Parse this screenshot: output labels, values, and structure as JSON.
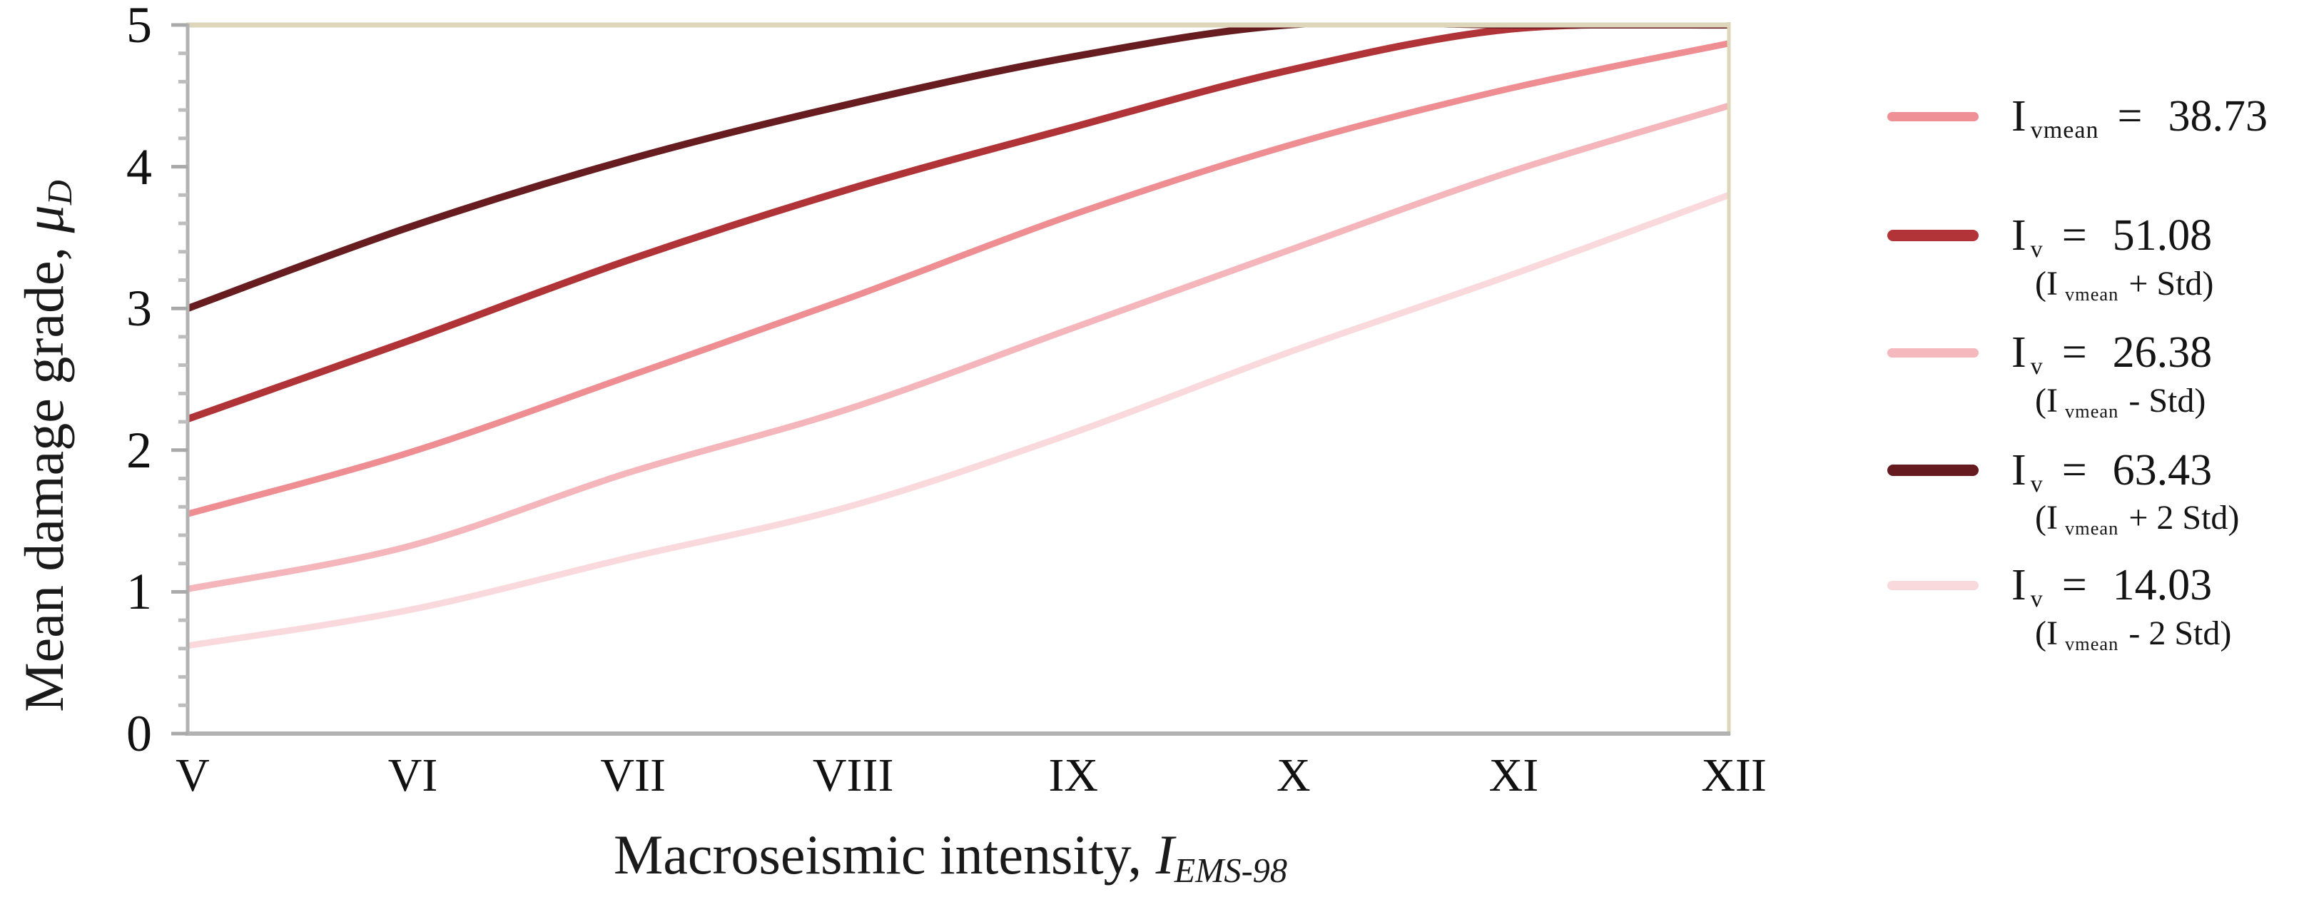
{
  "chart_data": {
    "type": "line",
    "title": "",
    "xlabel": "Macroseismic intensity, I_EMS-98",
    "ylabel": "Mean damage grade, μ_D",
    "categories": [
      "V",
      "VI",
      "VII",
      "VIII",
      "IX",
      "X",
      "XI",
      "XII"
    ],
    "x_values": [
      5,
      6,
      7,
      8,
      9,
      10,
      11,
      12
    ],
    "ylim": [
      0,
      5
    ],
    "y_ticks": [
      0,
      1,
      2,
      3,
      4,
      5
    ],
    "y_minor_tick_step": 0.2,
    "grid": false,
    "legend_position": "right",
    "series": [
      {
        "name": "I_vmean = 38.73",
        "color": "#ee8e93",
        "line_width": 9,
        "values": [
          1.55,
          1.98,
          2.52,
          3.07,
          3.65,
          4.15,
          4.55,
          4.87
        ]
      },
      {
        "name": "I_v = 51.08 (I_vmean + Std)",
        "color": "#b03337",
        "line_width": 10,
        "values": [
          2.22,
          2.77,
          3.34,
          3.84,
          4.27,
          4.68,
          4.97,
          5.0
        ]
      },
      {
        "name": "I_v = 26.38 (I_vmean - Std)",
        "color": "#f4b6ba",
        "line_width": 9,
        "values": [
          1.02,
          1.32,
          1.84,
          2.29,
          2.85,
          3.41,
          3.96,
          4.43
        ]
      },
      {
        "name": "I_v = 63.43 (I_vmean + 2 Std)",
        "color": "#671c20",
        "line_width": 10,
        "values": [
          3.0,
          3.57,
          4.05,
          4.44,
          4.77,
          5.0,
          5.0,
          5.0
        ]
      },
      {
        "name": "I_v = 14.03 (I_vmean - 2 Std)",
        "color": "#fad9dc",
        "line_width": 9,
        "values": [
          0.62,
          0.87,
          1.24,
          1.6,
          2.11,
          2.69,
          3.23,
          3.8
        ]
      }
    ]
  },
  "axes": {
    "y_title_main": "Mean damage grade, ",
    "y_title_symbol": "μ",
    "y_title_sub": "D",
    "y_tick_labels": [
      "5",
      "4",
      "3",
      "2",
      "1",
      "0"
    ],
    "x_title_main": "Macroseismic intensity, ",
    "x_title_symbol": "I",
    "x_title_sub": "EMS-98",
    "x_tick_labels": [
      "V",
      "VI",
      "VII",
      "VIII",
      "IX",
      "X",
      "XI",
      "XII"
    ],
    "axis_color": "#b2b2b2",
    "border_color": "#ddd6ba"
  },
  "legend": {
    "items": [
      {
        "symbol": "I",
        "symbol_sub": "vmean",
        "equals": "=",
        "value": "38.73",
        "color": "#ef9096",
        "swatch_thickness": 13,
        "note": null,
        "note_prefix": null,
        "note_sub": null,
        "note_rest": null
      },
      {
        "symbol": "I",
        "symbol_sub": "v",
        "equals": "=",
        "value": "51.08",
        "color": "#b23438",
        "swatch_thickness": 16,
        "note": "(I_vmean + Std)",
        "note_prefix": "(I",
        "note_sub": "vmean",
        "note_rest": "+ Std)"
      },
      {
        "symbol": "I",
        "symbol_sub": "v",
        "equals": "=",
        "value": "26.38",
        "color": "#f5b8bc",
        "swatch_thickness": 13,
        "note": "(I_vmean - Std)",
        "note_prefix": "(I",
        "note_sub": "vmean",
        "note_rest": "- Std)"
      },
      {
        "symbol": "I",
        "symbol_sub": "v",
        "equals": "=",
        "value": "63.43",
        "color": "#641a1e",
        "swatch_thickness": 16,
        "note": "(I_vmean + 2 Std)",
        "note_prefix": "(I",
        "note_sub": "vmean",
        "note_rest": "+ 2 Std)"
      },
      {
        "symbol": "I",
        "symbol_sub": "v",
        "equals": "=",
        "value": "14.03",
        "color": "#fad9dc",
        "swatch_thickness": 13,
        "note": "(I_vmean - 2 Std)",
        "note_prefix": "(I",
        "note_sub": "vmean",
        "note_rest": "- 2 Std)"
      }
    ]
  }
}
